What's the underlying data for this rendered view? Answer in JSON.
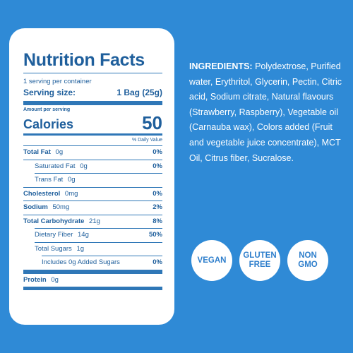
{
  "nutrition": {
    "title": "Nutrition Facts",
    "servings_per_container": "1 serving per container",
    "serving_size_label": "Serving size:",
    "serving_size_value": "1 Bag (25g)",
    "amount_per_serving": "Amount per serving",
    "calories_label": "Calories",
    "calories_value": "50",
    "daily_value_header": "% Daily Value",
    "rows": [
      {
        "name": "Total Fat",
        "amount": "0g",
        "dv": "0%"
      },
      {
        "name": "Saturated Fat",
        "amount": "0g",
        "dv": "0%"
      },
      {
        "name": "Trans Fat",
        "amount": "0g",
        "dv": ""
      },
      {
        "name": "Cholesterol",
        "amount": "0mg",
        "dv": "0%"
      },
      {
        "name": "Sodium",
        "amount": "50mg",
        "dv": "2%"
      },
      {
        "name": "Total Carbohydrate",
        "amount": "21g",
        "dv": "8%"
      },
      {
        "name": "Dietary Fiber",
        "amount": "14g",
        "dv": "50%"
      },
      {
        "name": "Total Sugars",
        "amount": "1g",
        "dv": ""
      },
      {
        "name": "Includes 0g Added Sugars",
        "amount": "",
        "dv": "0%"
      },
      {
        "name": "Protein",
        "amount": "0g",
        "dv": ""
      }
    ]
  },
  "ingredients": {
    "heading": "INGREDIENTS:",
    "text": "Polydextrose, Purified water, Erythritol, Glycerin, Pectin, Citric acid, Sodium citrate, Natural flavours (Strawberry, Raspberry), Vegetable oil (Carnauba wax), Colors added (Fruit and vegetable juice concentrate), MCT Oil, Citrus fiber, Sucralose."
  },
  "badges": {
    "vegan": [
      "VEGAN"
    ],
    "gluten_free": [
      "GLUTEN",
      "FREE"
    ],
    "non_gmo": [
      "NON",
      "GMO"
    ]
  },
  "colors": {
    "background": "#2f8ad6",
    "label_text": "#1f5f9c",
    "badge_text": "#2f7fcc"
  }
}
